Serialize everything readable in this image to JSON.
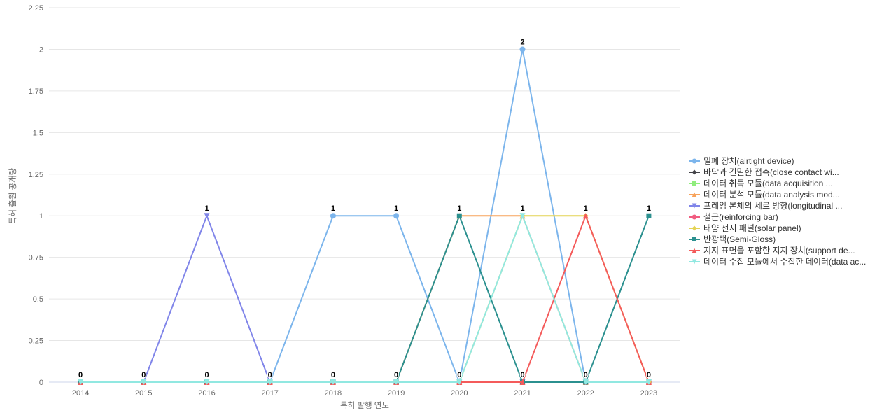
{
  "chart_data": {
    "type": "line",
    "title": "",
    "xlabel": "특허 발행 연도",
    "ylabel": "특허 출원 공개량",
    "categories": [
      "2014",
      "2015",
      "2016",
      "2017",
      "2018",
      "2019",
      "2020",
      "2021",
      "2022",
      "2023"
    ],
    "ylim": [
      0,
      2.25
    ],
    "yticks": [
      "0",
      "0.25",
      "0.5",
      "0.75",
      "1",
      "1.25",
      "1.5",
      "1.75",
      "2",
      "2.25"
    ],
    "grid": "horizontal-only",
    "legend_position": "right",
    "grid_color": "#e6e6e6",
    "axis_line_color": "#ccd6eb",
    "tick_label_color": "#666666",
    "legend_text_color": "#333333",
    "data_label_color": "#000000",
    "series": [
      {
        "name": "밀폐 장치(airtight device)",
        "color": "#7cb5ec",
        "symbol": "circle",
        "values": [
          0,
          0,
          0,
          0,
          1,
          1,
          0,
          2,
          0,
          0
        ]
      },
      {
        "name": "바닥과 긴밀한 접촉(close contact wi...",
        "color": "#434348",
        "symbol": "diamond",
        "values": [
          0,
          0,
          0,
          0,
          0,
          0,
          0,
          0,
          0,
          0
        ]
      },
      {
        "name": "데이터 취득 모듈(data acquisition ...",
        "color": "#90ed7d",
        "symbol": "square",
        "values": [
          0,
          0,
          0,
          0,
          0,
          0,
          0,
          0,
          0,
          0
        ]
      },
      {
        "name": "데이터 분석 모듈(data analysis mod...",
        "color": "#f7a35c",
        "symbol": "triangle",
        "values": [
          0,
          0,
          0,
          0,
          0,
          0,
          1,
          1,
          0,
          0
        ]
      },
      {
        "name": "프레임 본체의 세로 방향(longitudinal ...",
        "color": "#8085e9",
        "symbol": "triangle-down",
        "values": [
          0,
          0,
          1,
          0,
          0,
          0,
          0,
          0,
          0,
          0
        ]
      },
      {
        "name": "철근(reinforcing bar)",
        "color": "#f15c80",
        "symbol": "circle",
        "values": [
          0,
          0,
          0,
          0,
          0,
          0,
          0,
          0,
          0,
          0
        ]
      },
      {
        "name": "태양 전지 패널(solar panel)",
        "color": "#e4d354",
        "symbol": "diamond",
        "values": [
          0,
          0,
          0,
          0,
          0,
          0,
          0,
          1,
          1,
          0
        ]
      },
      {
        "name": "반광택(Semi-Gloss)",
        "color": "#2b908f",
        "symbol": "square",
        "values": [
          0,
          0,
          0,
          0,
          0,
          0,
          1,
          0,
          0,
          1
        ]
      },
      {
        "name": "지지 표면을 포함한 지지 장치(support de...",
        "color": "#f45b5b",
        "symbol": "triangle",
        "values": [
          0,
          0,
          0,
          0,
          0,
          0,
          0,
          0,
          1,
          0
        ]
      },
      {
        "name": "데이터 수집 모듈에서 수집한 데이터(data ac...",
        "color": "#91e8e1",
        "symbol": "triangle-down",
        "values": [
          0,
          0,
          0,
          0,
          0,
          0,
          0,
          1,
          0,
          0
        ]
      }
    ]
  }
}
